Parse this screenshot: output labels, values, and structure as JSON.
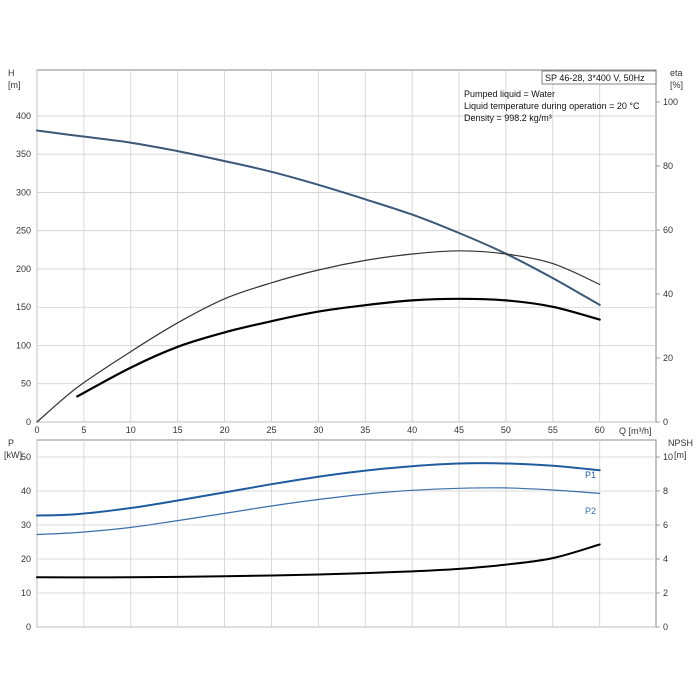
{
  "chart_data": [
    {
      "type": "line",
      "panel": "top",
      "ylabel_left": [
        "H",
        "[m]"
      ],
      "ylabel_right": [
        "eta",
        "[%]"
      ],
      "xlabel": "Q [m³/h]",
      "xlim": [
        0,
        66
      ],
      "ylim_left": [
        0,
        460
      ],
      "ylim_right": [
        0,
        110
      ],
      "x_ticks": [
        0,
        5,
        10,
        15,
        20,
        25,
        30,
        35,
        40,
        45,
        50,
        55,
        60
      ],
      "y_ticks_left": [
        0,
        50,
        100,
        150,
        200,
        250,
        300,
        350,
        400
      ],
      "y_ticks_right": [
        0,
        20,
        40,
        60,
        80,
        100
      ],
      "grid": true,
      "info_box": {
        "title": "SP 46-28, 3*400 V, 50Hz",
        "lines": [
          "Pumped liquid = Water",
          "Liquid temperature during operation = 20 °C",
          "Density = 998.2 kg/m³"
        ]
      },
      "series": [
        {
          "axis": "left",
          "color": "#1f5b9e",
          "width": 2,
          "x": [
            0,
            4.3,
            10,
            15,
            20,
            25,
            30,
            35,
            40,
            45,
            50,
            55,
            60
          ],
          "y": [
            381,
            374,
            365,
            354,
            341,
            327,
            310,
            291,
            271,
            247,
            220,
            188,
            153
          ]
        },
        {
          "axis": "left",
          "color": "#555555",
          "width": 1,
          "x": [
            0,
            4.3,
            10,
            15,
            20,
            25,
            30,
            35,
            40,
            45,
            50,
            55,
            60
          ],
          "y": [
            381,
            374,
            365,
            354,
            341,
            327,
            310,
            291,
            271,
            247,
            220,
            188,
            153
          ]
        },
        {
          "axis": "right",
          "color": "#333333",
          "width": 1.2,
          "x": [
            0,
            4.3,
            10,
            15,
            20,
            25,
            30,
            35,
            40,
            45,
            50,
            55,
            60
          ],
          "y": [
            0,
            10.8,
            22,
            31,
            38.5,
            43.5,
            47.5,
            50.5,
            52.5,
            53.5,
            52.5,
            49.5,
            43
          ]
        },
        {
          "axis": "right",
          "color": "#000000",
          "width": 2.2,
          "x": [
            4.3,
            10,
            15,
            20,
            25,
            30,
            35,
            40,
            45,
            50,
            55,
            60
          ],
          "y": [
            8,
            17,
            23.5,
            28,
            31.5,
            34.5,
            36.5,
            38,
            38.5,
            38,
            36,
            32
          ]
        }
      ]
    },
    {
      "type": "line",
      "panel": "bottom",
      "ylabel_left": [
        "P",
        "[kW]"
      ],
      "ylabel_right": [
        "NPSH",
        "[m]"
      ],
      "xlim": [
        0,
        66
      ],
      "ylim_left": [
        0,
        55
      ],
      "ylim_right": [
        0,
        11
      ],
      "y_ticks_left": [
        0,
        10,
        20,
        30,
        40,
        50
      ],
      "y_ticks_right": [
        0,
        2,
        4,
        6,
        8,
        10
      ],
      "grid": true,
      "series": [
        {
          "name": "P1",
          "axis": "left",
          "color": "#1f5b9e",
          "width": 2,
          "x": [
            0,
            4.3,
            10,
            15,
            20,
            25,
            30,
            35,
            40,
            45,
            50,
            55,
            60
          ],
          "y": [
            32.8,
            33.2,
            35.0,
            37.2,
            39.6,
            42.0,
            44.2,
            46.0,
            47.3,
            48.1,
            48.1,
            47.4,
            46.1
          ]
        },
        {
          "name": "P2",
          "axis": "left",
          "color": "#3a6ea8",
          "width": 1.2,
          "x": [
            0,
            4.3,
            10,
            15,
            20,
            25,
            30,
            35,
            40,
            45,
            50,
            55,
            60
          ],
          "y": [
            27.2,
            27.8,
            29.3,
            31.3,
            33.4,
            35.6,
            37.5,
            39.1,
            40.2,
            40.8,
            40.9,
            40.3,
            39.3
          ]
        },
        {
          "axis": "right",
          "color": "#000000",
          "width": 2,
          "x": [
            0,
            4.3,
            10,
            15,
            20,
            25,
            30,
            35,
            40,
            45,
            50,
            55,
            60
          ],
          "y": [
            2.93,
            2.92,
            2.93,
            2.95,
            2.98,
            3.03,
            3.09,
            3.17,
            3.27,
            3.42,
            3.67,
            4.05,
            4.85
          ]
        }
      ]
    }
  ]
}
